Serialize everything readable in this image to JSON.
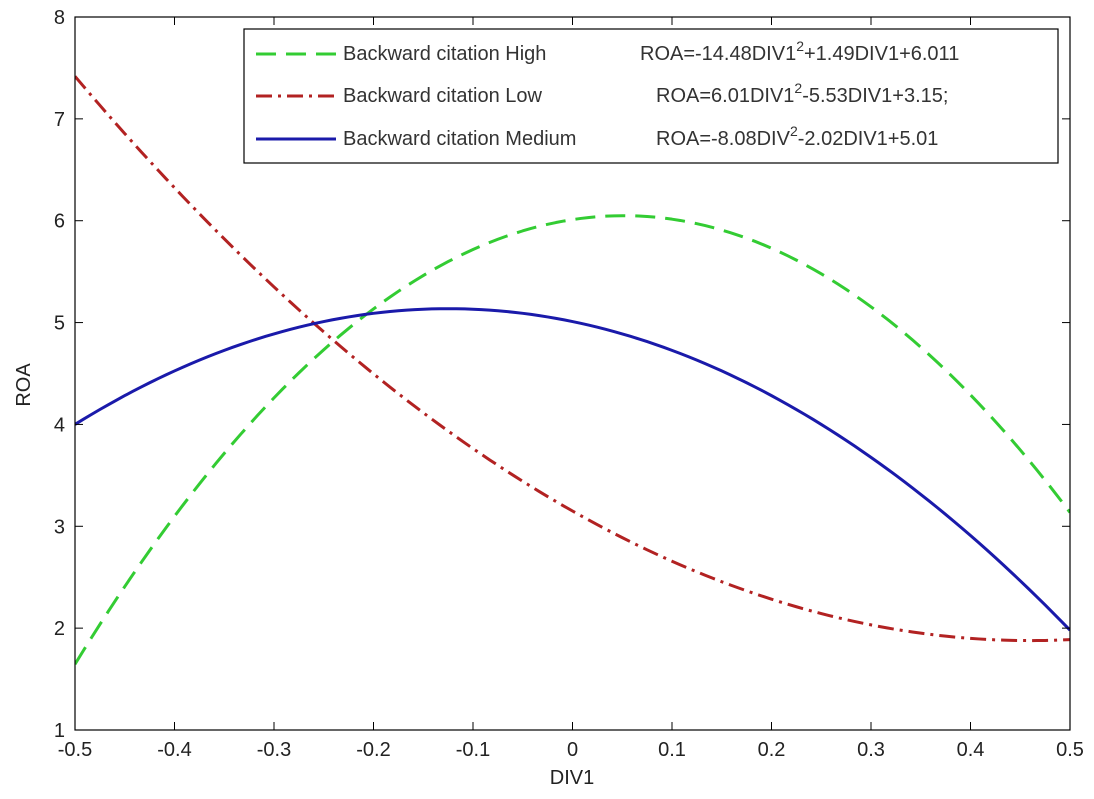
{
  "chart_data": {
    "type": "line",
    "xlabel": "DIV1",
    "ylabel": "ROA",
    "xlim": [
      -0.5,
      0.5
    ],
    "ylim": [
      1,
      8
    ],
    "x_ticks": [
      "-0.5",
      "-0.4",
      "-0.3",
      "-0.2",
      "-0.1",
      "0",
      "0.1",
      "0.2",
      "0.3",
      "0.4",
      "0.5"
    ],
    "y_ticks": [
      "1",
      "2",
      "3",
      "4",
      "5",
      "6",
      "7",
      "8"
    ],
    "grid": false,
    "legend_position": "top-right",
    "series": [
      {
        "name": "Backward citation High",
        "color": "#33cc33",
        "style": "dashed",
        "equation": {
          "pre": "ROA=-14.48DIV1",
          "sup": "2",
          "post": "+1.49DIV1+6.011"
        },
        "coefficients": [
          -14.48,
          1.49,
          6.011
        ]
      },
      {
        "name": "Backward citation Low",
        "color": "#b22222",
        "style": "dash-dot",
        "equation": {
          "pre": "ROA=6.01DIV1",
          "sup": "2",
          "post": "-5.53DIV1+3.15;"
        },
        "coefficients": [
          6.01,
          -5.53,
          3.15
        ]
      },
      {
        "name": "Backward citation Medium",
        "color": "#1a1aaa",
        "style": "solid",
        "equation": {
          "pre": "ROA=-8.08DIV",
          "sup": "2",
          "post": "-2.02DIV1+5.01"
        },
        "coefficients": [
          -8.08,
          -2.02,
          5.01
        ]
      }
    ]
  }
}
